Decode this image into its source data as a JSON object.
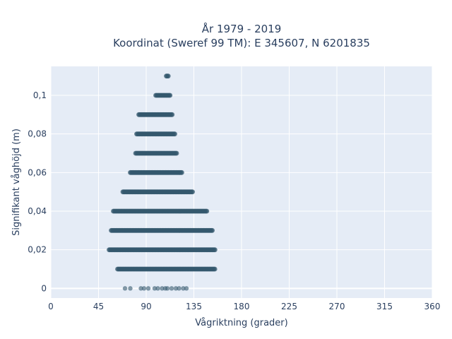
{
  "chart_data": {
    "type": "scatter",
    "title_line1": "År 1979 - 2019",
    "title_line2": "Koordinat (Sweref 99 TM): E 345607, N 6201835",
    "xlabel": "Vågriktning (grader)",
    "ylabel": "Signifikant våghöjd (m)",
    "xlim": [
      0,
      360
    ],
    "ylim": [
      -0.005,
      0.115
    ],
    "x_ticks": [
      0,
      45,
      90,
      135,
      180,
      225,
      270,
      315,
      360
    ],
    "x_tick_labels": [
      "0",
      "45",
      "90",
      "135",
      "180",
      "225",
      "270",
      "315",
      "360"
    ],
    "y_ticks": [
      0,
      0.02,
      0.04,
      0.06,
      0.08,
      0.1
    ],
    "y_tick_labels": [
      "0",
      "0,02",
      "0,04",
      "0,06",
      "0,08",
      "0,1"
    ],
    "grid": true,
    "marker_color": "#34586e",
    "plot_background": "#e5ecf6",
    "bands": [
      {
        "y": 0.11,
        "x_min": 109,
        "x_max": 111
      },
      {
        "y": 0.1,
        "x_min": 99,
        "x_max": 113
      },
      {
        "y": 0.09,
        "x_min": 83,
        "x_max": 115
      },
      {
        "y": 0.08,
        "x_min": 81,
        "x_max": 117
      },
      {
        "y": 0.07,
        "x_min": 80,
        "x_max": 119
      },
      {
        "y": 0.06,
        "x_min": 75,
        "x_max": 124
      },
      {
        "y": 0.05,
        "x_min": 68,
        "x_max": 134
      },
      {
        "y": 0.04,
        "x_min": 59,
        "x_max": 148
      },
      {
        "y": 0.03,
        "x_min": 57,
        "x_max": 153
      },
      {
        "y": 0.02,
        "x_min": 55,
        "x_max": 155
      },
      {
        "y": 0.01,
        "x_min": 63,
        "x_max": 155
      }
    ],
    "zero_points": [
      70,
      75,
      85,
      88,
      92,
      98,
      101,
      105,
      108,
      110,
      114,
      118,
      121,
      125,
      128
    ]
  }
}
